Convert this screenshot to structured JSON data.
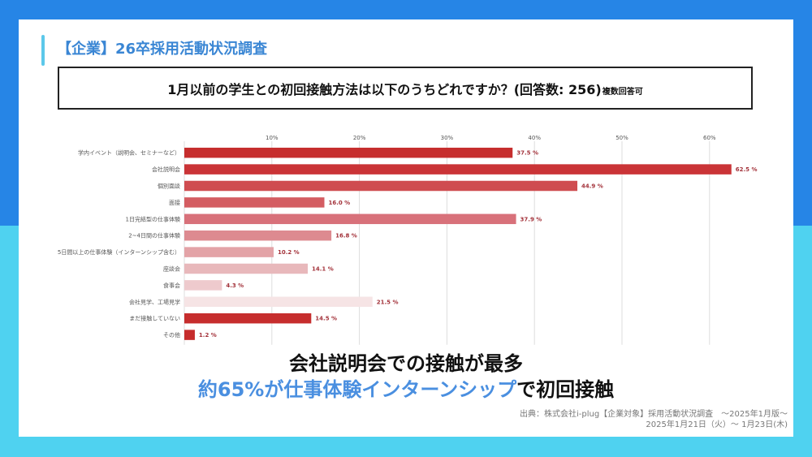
{
  "page": {
    "title": "【企業】26卒採用活動状況調査",
    "question": "1月以前の学生との初回接触方法は以下のうちどれですか？(回答数: 256)",
    "question_note": "複数回答可"
  },
  "summary": {
    "line1": "会社説明会での接触が最多",
    "line2_prefix": "約65%が仕事体験インターンシップ",
    "line2_suffix": "で初回接触"
  },
  "source": {
    "line1": "出典：株式会社i-plug【企業対象】採用活動状況調査　～2025年1月版～",
    "line2": "2025年1月21日（火）～ 1月23日(木)"
  },
  "colors": {
    "bg_top": "#2685e6",
    "bg_bottom": "#4fd2f0",
    "title": "#3a86d4",
    "highlight": "#4a8fe0",
    "value_label": "#a3323a"
  },
  "chart_data": {
    "type": "bar",
    "orientation": "horizontal",
    "title": "1月以前の学生との初回接触方法は以下のうちどれですか？(回答数: 256)",
    "xlabel": "",
    "ylabel": "",
    "xlim": [
      0,
      65
    ],
    "xticks": [
      10,
      20,
      30,
      40,
      50,
      60
    ],
    "xtick_labels": [
      "10%",
      "20%",
      "30%",
      "40%",
      "50%",
      "60%"
    ],
    "grid": true,
    "value_suffix": " %",
    "categories": [
      "学内イベント（説明会、セミナーなど）",
      "会社説明会",
      "個別面談",
      "面接",
      "1日完結型の仕事体験",
      "2~4日間の仕事体験",
      "5日間以上の仕事体験（インターンシップ含む）",
      "座談会",
      "食事会",
      "会社見学、工場見学",
      "まだ接触していない",
      "その他"
    ],
    "values": [
      37.5,
      62.5,
      44.9,
      16.0,
      37.9,
      16.8,
      10.2,
      14.1,
      4.3,
      21.5,
      14.5,
      1.2
    ],
    "value_labels": [
      "37.5 %",
      "62.5 %",
      "44.9 %",
      "16.0 %",
      "37.9 %",
      "16.8 %",
      "10.2 %",
      "14.1 %",
      "4.3 %",
      "21.5 %",
      "14.5 %",
      "1.2 %"
    ],
    "bar_colors": [
      "#c62d2d",
      "#ca3437",
      "#cf4c50",
      "#d45d62",
      "#d8717a",
      "#dd8a90",
      "#e3a3a7",
      "#e8b8bb",
      "#eecacd",
      "#f6e4e5",
      "#c62d2d",
      "#c62d2d"
    ]
  }
}
